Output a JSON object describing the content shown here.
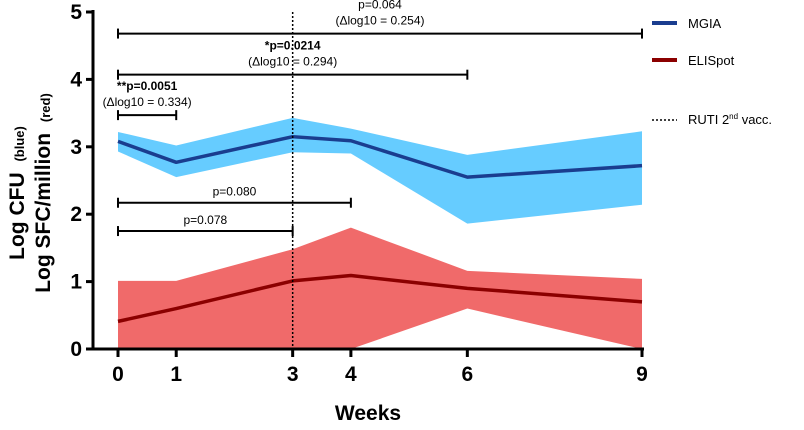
{
  "chart_data": {
    "type": "line",
    "x": [
      0,
      1,
      3,
      4,
      6,
      9
    ],
    "xlabel": "Weeks",
    "ylabel_line1": "Log CFU",
    "ylabel_line1_sub": "(blue)",
    "ylabel_line2": "Log SFC/million",
    "ylabel_line2_sub": "(red)",
    "xlim": [
      0,
      9
    ],
    "ylim": [
      0,
      5
    ],
    "xticks": [
      0,
      1,
      3,
      4,
      6,
      9
    ],
    "xtick_labels": [
      "0",
      "1",
      "3",
      "4",
      "6",
      "9"
    ],
    "yticks": [
      0,
      1,
      2,
      3,
      4,
      5
    ],
    "ytick_labels": [
      "0",
      "1",
      "2",
      "3",
      "4",
      "5"
    ],
    "series": [
      {
        "name": "MGIA",
        "line_color": "#1a3d8f",
        "band_color": "#66ccff",
        "values": [
          3.08,
          2.77,
          3.15,
          3.09,
          2.55,
          2.72
        ],
        "upper": [
          3.22,
          3.02,
          3.43,
          3.27,
          2.88,
          3.23
        ],
        "lower": [
          2.93,
          2.55,
          2.92,
          2.9,
          1.86,
          2.14
        ]
      },
      {
        "name": "ELISpot",
        "line_color": "#8b0000",
        "band_color": "#f06a6a",
        "values": [
          0.41,
          0.6,
          1.01,
          1.09,
          0.9,
          0.7
        ],
        "upper": [
          1.01,
          1.01,
          1.48,
          1.8,
          1.16,
          1.04
        ],
        "lower": [
          0.0,
          0.0,
          0.0,
          0.0,
          0.6,
          0.0
        ]
      }
    ],
    "vline": {
      "x": 3,
      "label": "RUTI 2",
      "label_sup": "nd",
      "label_suffix": " vacc."
    },
    "brackets": [
      {
        "x1": 0,
        "x2": 9,
        "y": 4.68,
        "line1": "p=0.064",
        "line2": "(Δlog10 = 0.254)",
        "bold": false
      },
      {
        "x1": 0,
        "x2": 6,
        "y": 4.07,
        "line1": "*p=0.0214",
        "line2": "(Δlog10 = 0.294)",
        "bold": true
      },
      {
        "x1": 0,
        "x2": 1,
        "y": 3.47,
        "line1": "**p=0.0051",
        "line2": "(Δlog10 = 0.334)",
        "bold": true
      },
      {
        "x1": 0,
        "x2": 4,
        "y": 2.17,
        "line1": "p=0.080",
        "line2": "",
        "bold": false
      },
      {
        "x1": 0,
        "x2": 3,
        "y": 1.75,
        "line1": "p=0.078",
        "line2": "",
        "bold": false
      }
    ]
  }
}
